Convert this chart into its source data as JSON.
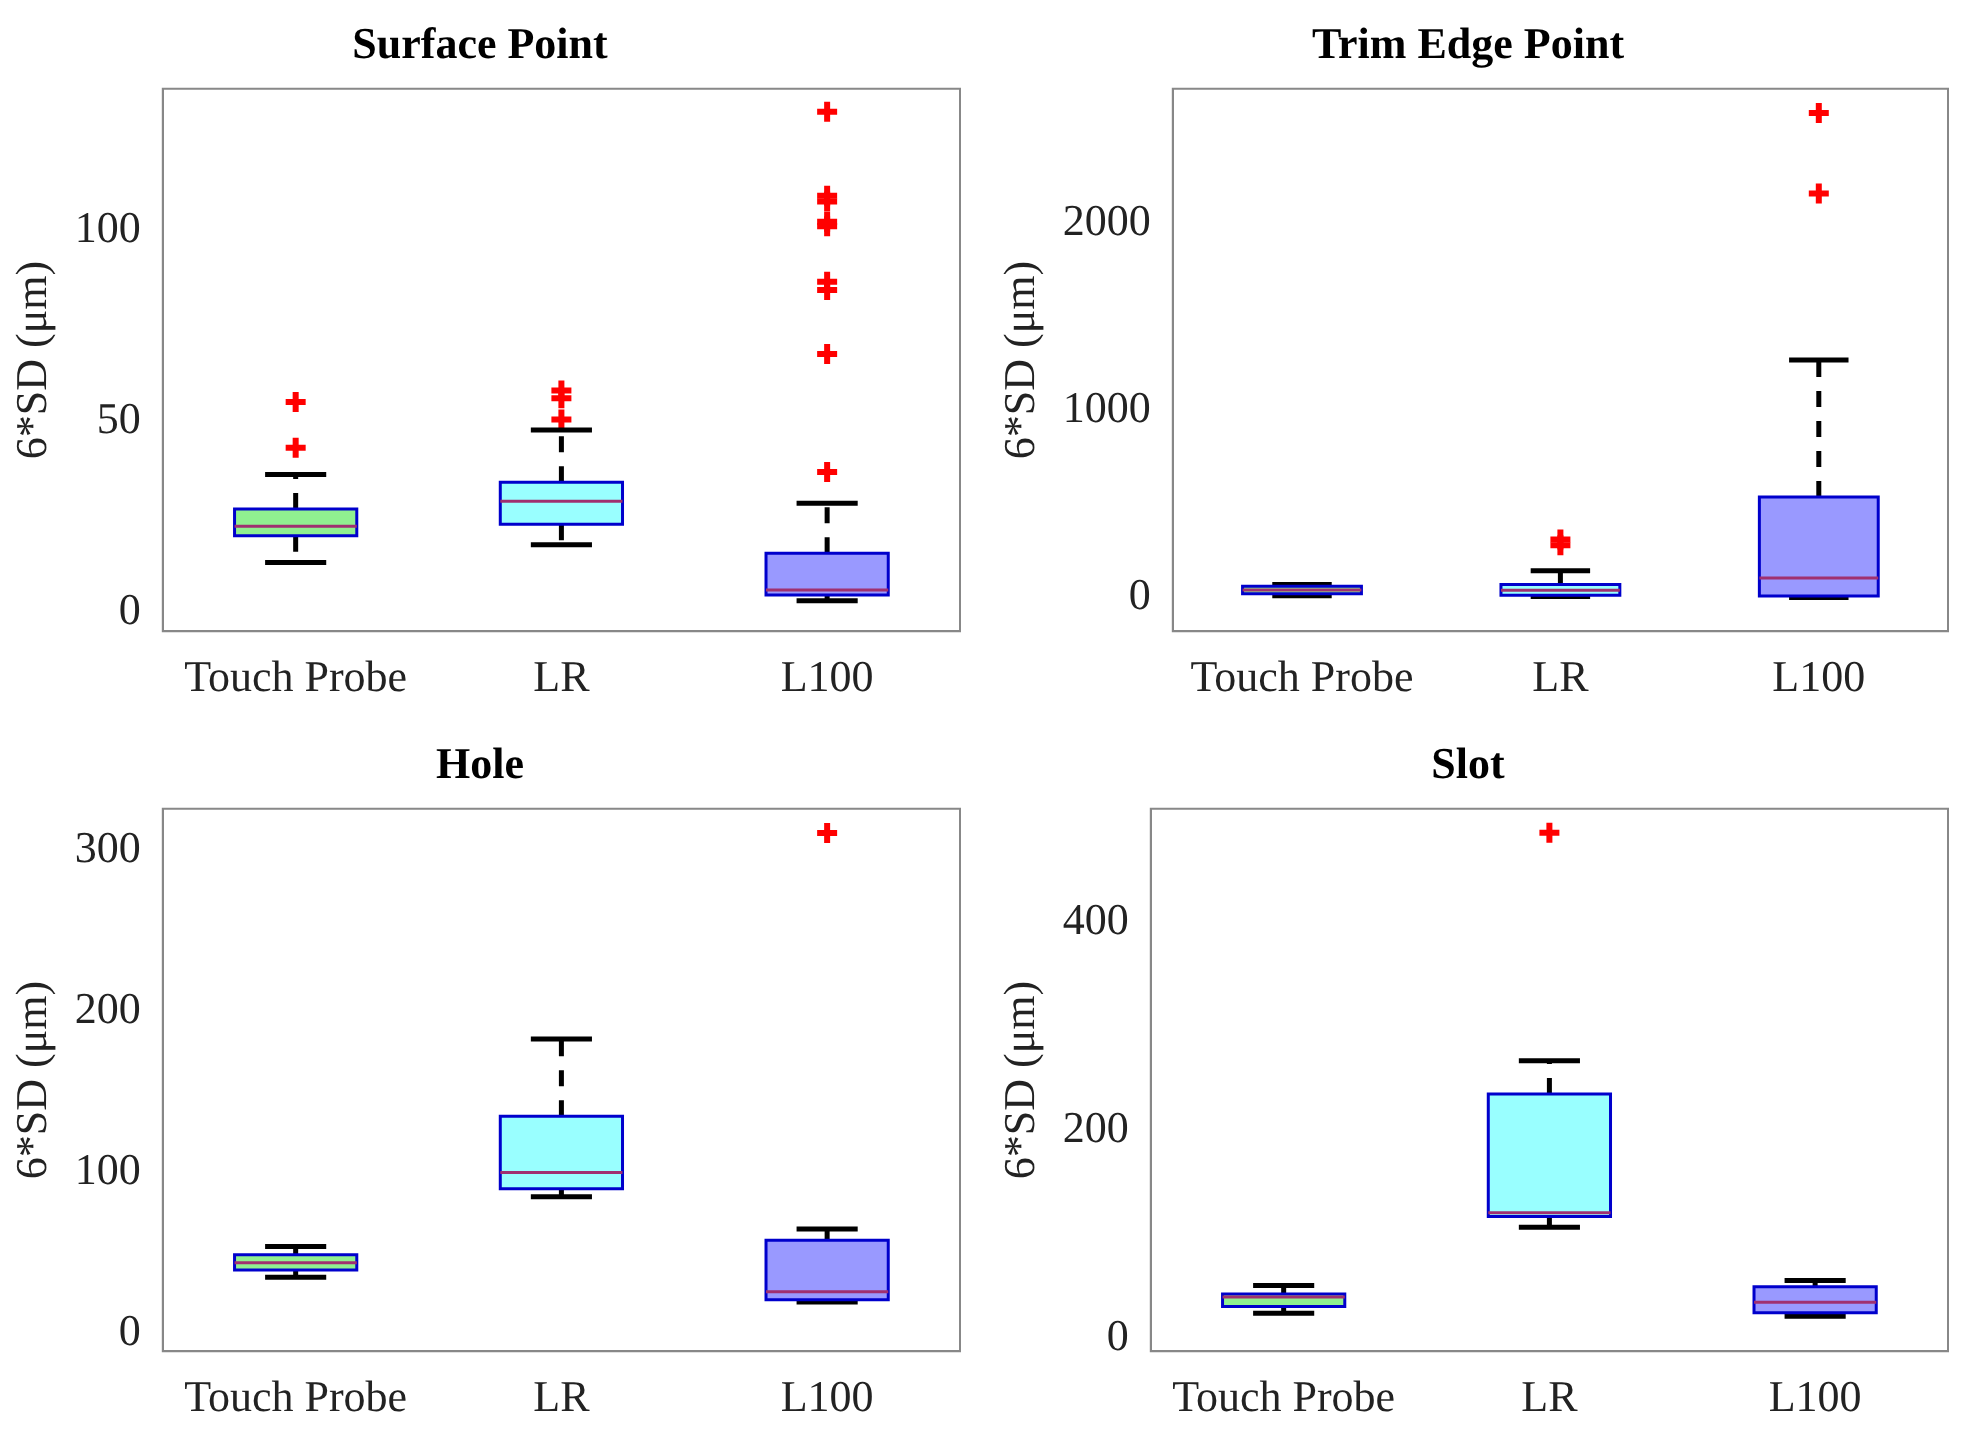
{
  "chart_data": [
    {
      "type": "box",
      "title": "Surface Point",
      "ylabel": "6*SD (μm)",
      "categories": [
        "Touch Probe",
        "LR",
        "L100"
      ],
      "colors": [
        "#90f090",
        "#99ffff",
        "#9999ff"
      ],
      "ylim": [
        -5,
        137
      ],
      "yticks": [
        0,
        50,
        100
      ],
      "grid": false,
      "marker": "cross",
      "boxes": [
        {
          "low": 13,
          "q1": 20,
          "median": 22.5,
          "q3": 27,
          "high": 36,
          "outliers": [
            43,
            55
          ]
        },
        {
          "low": 17.6,
          "q1": 23,
          "median": 29,
          "q3": 34,
          "high": 47.7,
          "outliers": [
            50.4,
            56,
            58
          ]
        },
        {
          "low": 3,
          "q1": 4.5,
          "median": 5.8,
          "q3": 15.4,
          "high": 28.5,
          "outliers": [
            36.7,
            67.6,
            84.3,
            86.5,
            101,
            102.2,
            107.5,
            109,
            131
          ]
        }
      ]
    },
    {
      "type": "box",
      "title": "Trim Edge Point",
      "ylabel": "6*SD (μm)",
      "categories": [
        "Touch Probe",
        "LR",
        "L100"
      ],
      "colors": [
        "#90f090",
        "#99ffff",
        "#9999ff"
      ],
      "ylim": [
        -180,
        2720
      ],
      "yticks": [
        0,
        1000,
        2000
      ],
      "grid": false,
      "marker": "cross",
      "boxes": [
        {
          "low": 10,
          "q1": 20,
          "median": 40,
          "q3": 60,
          "high": 70
        },
        {
          "low": 5,
          "q1": 12,
          "median": 39,
          "q3": 70,
          "high": 143,
          "outliers": [
            280,
            310
          ]
        },
        {
          "low": 0,
          "q1": 8,
          "median": 104,
          "q3": 537,
          "high": 1270,
          "outliers": [
            2160,
            2590
          ]
        }
      ]
    },
    {
      "type": "box",
      "title": "Hole",
      "ylabel": "6*SD (μm)",
      "categories": [
        "Touch Probe",
        "LR",
        "L100"
      ],
      "colors": [
        "#90f090",
        "#99ffff",
        "#9999ff"
      ],
      "ylim": [
        -11,
        326
      ],
      "yticks": [
        0,
        100,
        200,
        300
      ],
      "grid": false,
      "marker": "cross",
      "boxes": [
        {
          "low": 35,
          "q1": 39.5,
          "median": 44,
          "q3": 49,
          "high": 54
        },
        {
          "low": 85,
          "q1": 90,
          "median": 100,
          "q3": 135,
          "high": 183
        },
        {
          "low": 19.5,
          "q1": 21,
          "median": 26,
          "q3": 58,
          "high": 65,
          "outliers": [
            311
          ]
        }
      ]
    },
    {
      "type": "box",
      "title": "Slot",
      "ylabel": "6*SD (μm)",
      "categories": [
        "Touch Probe",
        "LR",
        "L100"
      ],
      "colors": [
        "#90f090",
        "#99ffff",
        "#9999ff"
      ],
      "ylim": [
        -12,
        509
      ],
      "yticks": [
        0,
        200,
        400
      ],
      "grid": false,
      "marker": "cross",
      "boxes": [
        {
          "low": 24.5,
          "q1": 31,
          "median": 40,
          "q3": 43,
          "high": 51
        },
        {
          "low": 107,
          "q1": 117.5,
          "median": 121,
          "q3": 235,
          "high": 267,
          "outliers": [
            486
          ]
        },
        {
          "low": 21.6,
          "q1": 25,
          "median": 35,
          "q3": 50,
          "high": 56
        }
      ]
    }
  ]
}
